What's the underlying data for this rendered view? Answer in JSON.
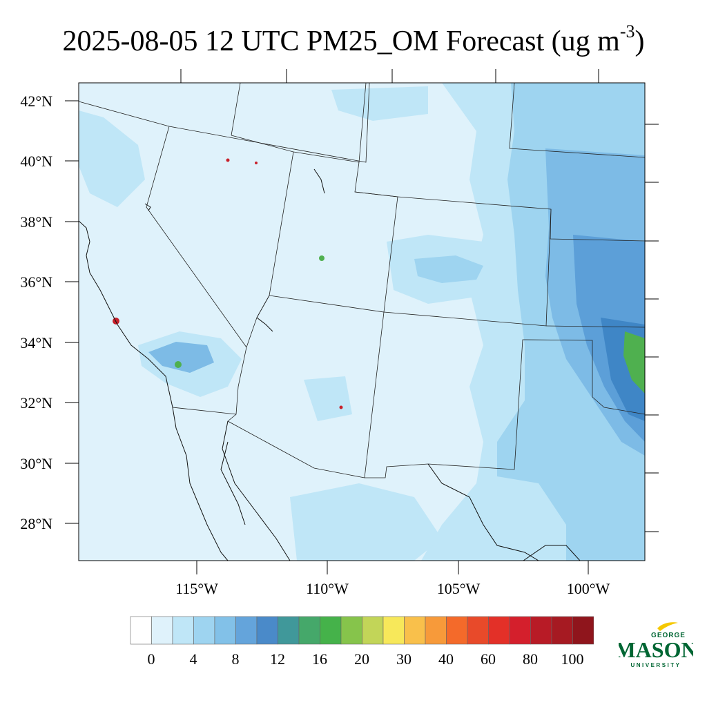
{
  "title": {
    "main": "2025-08-05 12 UTC PM25_OM Forecast (ug m",
    "superscript": "-3",
    "close": ")"
  },
  "map": {
    "lat_labels": [
      "42°N",
      "40°N",
      "38°N",
      "36°N",
      "34°N",
      "32°N",
      "30°N",
      "28°N"
    ],
    "lon_labels": [
      "115°W",
      "110°W",
      "105°W",
      "100°W"
    ],
    "colors": {
      "background": "#dff2fb",
      "light": "#bfe6f7",
      "medium": "#9ed4f0",
      "deeper": "#7dbbe6",
      "deep": "#5c9fd8",
      "deepest": "#3f86c6",
      "green": "#4fb04f",
      "red": "#c8202a"
    }
  },
  "colorbar": {
    "colors": [
      "#ffffff",
      "#dff2fb",
      "#bfe6f7",
      "#9ed4f0",
      "#82c1e8",
      "#64a4db",
      "#4a8ac9",
      "#40989a",
      "#45a86a",
      "#45b24a",
      "#86c44b",
      "#c2d558",
      "#f7e85a",
      "#f9c04b",
      "#f79a3a",
      "#f46a2a",
      "#e84a2a",
      "#e33028",
      "#d41f2c",
      "#b81b26",
      "#a61a22",
      "#8f151c"
    ],
    "labels": [
      "0",
      "4",
      "8",
      "12",
      "16",
      "20",
      "30",
      "40",
      "60",
      "80",
      "100"
    ]
  },
  "logo": {
    "top": "GEORGE",
    "main": "MASON",
    "bottom": "UNIVERSITY",
    "color": "#006633",
    "accent": "#f5c800"
  }
}
